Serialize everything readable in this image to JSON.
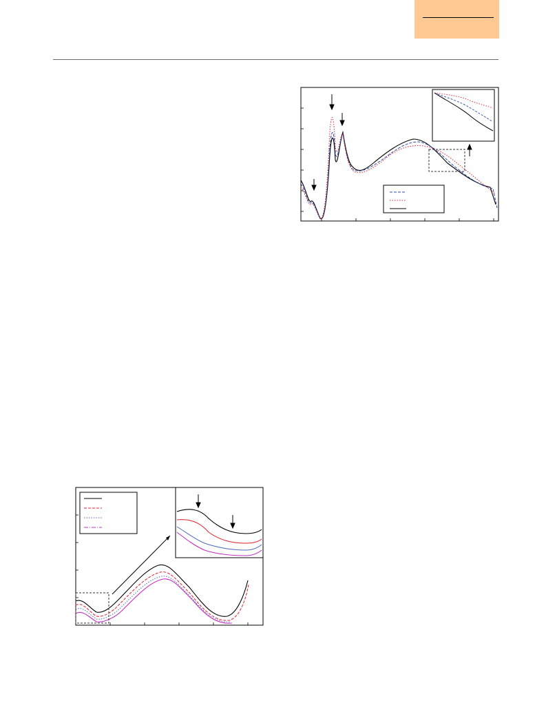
{
  "header": {
    "badge_color": "#ffc994"
  },
  "figures": [
    {
      "id": "top",
      "description_only": true,
      "series_colors": [
        "#2a4aa8",
        "#e0202a",
        "#000000"
      ],
      "legend_entries": [
        "",
        "",
        ""
      ],
      "arrows": 5
    },
    {
      "id": "bottom",
      "description_only": true,
      "series_colors": [
        "#000000",
        "#e0202a",
        "#4a6ac0",
        "#c030c0"
      ],
      "legend_entries": [
        "",
        "",
        "",
        ""
      ],
      "arrows": 3
    }
  ]
}
